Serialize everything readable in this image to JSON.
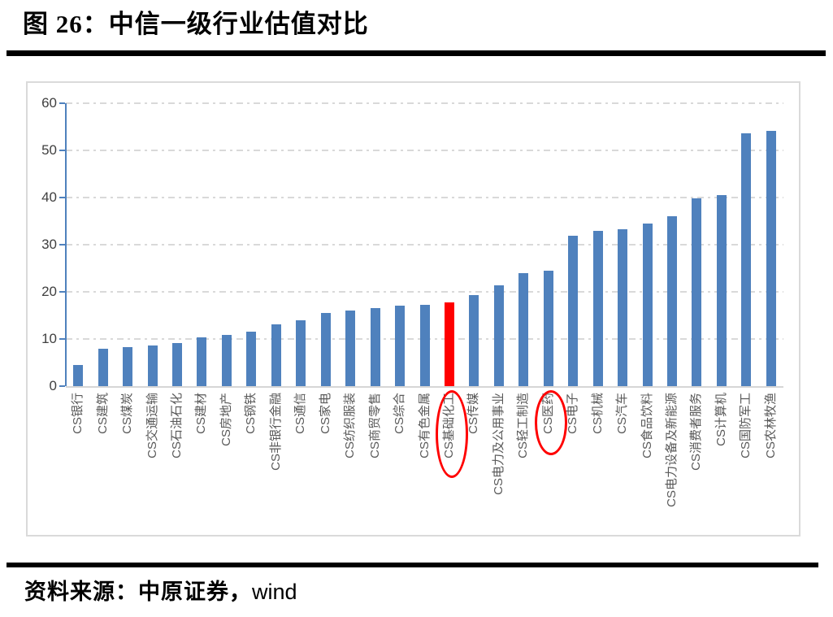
{
  "page": {
    "title": "图 26：中信一级行业估值对比",
    "source_prefix": "资料来源：中原证券，",
    "source_wind": "wind"
  },
  "chart_data": {
    "type": "bar",
    "title": "中信一级行业估值对比",
    "categories": [
      "CS银行",
      "CS建筑",
      "CS煤炭",
      "CS交通运输",
      "CS石油石化",
      "CS建材",
      "CS房地产",
      "CS钢铁",
      "CS非银行金融",
      "CS通信",
      "CS家电",
      "CS纺织服装",
      "CS商贸零售",
      "CS综合",
      "CS有色金属",
      "CS基础化工",
      "CS传媒",
      "CS电力及公用事业",
      "CS轻工制造",
      "CS医药",
      "CS电子",
      "CS机械",
      "CS汽车",
      "CS食品饮料",
      "CS电力设备及新能源",
      "CS消费者服务",
      "CS计算机",
      "CS国防军工",
      "CS农林牧渔"
    ],
    "values": [
      4.4,
      8.0,
      8.2,
      8.6,
      9.1,
      10.4,
      10.9,
      11.6,
      13.1,
      13.9,
      15.6,
      16.0,
      16.6,
      17.0,
      17.2,
      17.7,
      19.3,
      21.3,
      24.0,
      24.5,
      31.9,
      32.9,
      33.2,
      34.4,
      36.1,
      39.9,
      40.5,
      53.6,
      54.2
    ],
    "ylim": [
      0,
      60
    ],
    "yticks": [
      0,
      10,
      20,
      30,
      40,
      50,
      60
    ],
    "xlabel": "",
    "ylabel": "",
    "grid": "horizontal-dash-dot",
    "legend": "none",
    "bar_color": "#4f81bd",
    "highlight_color": "#ff0000",
    "highlight_index": 15,
    "circled_label_indices": [
      15,
      19
    ],
    "axis_color": "#4f81bd",
    "tick_label_color": "#404040",
    "category_label_color": "#595959"
  }
}
